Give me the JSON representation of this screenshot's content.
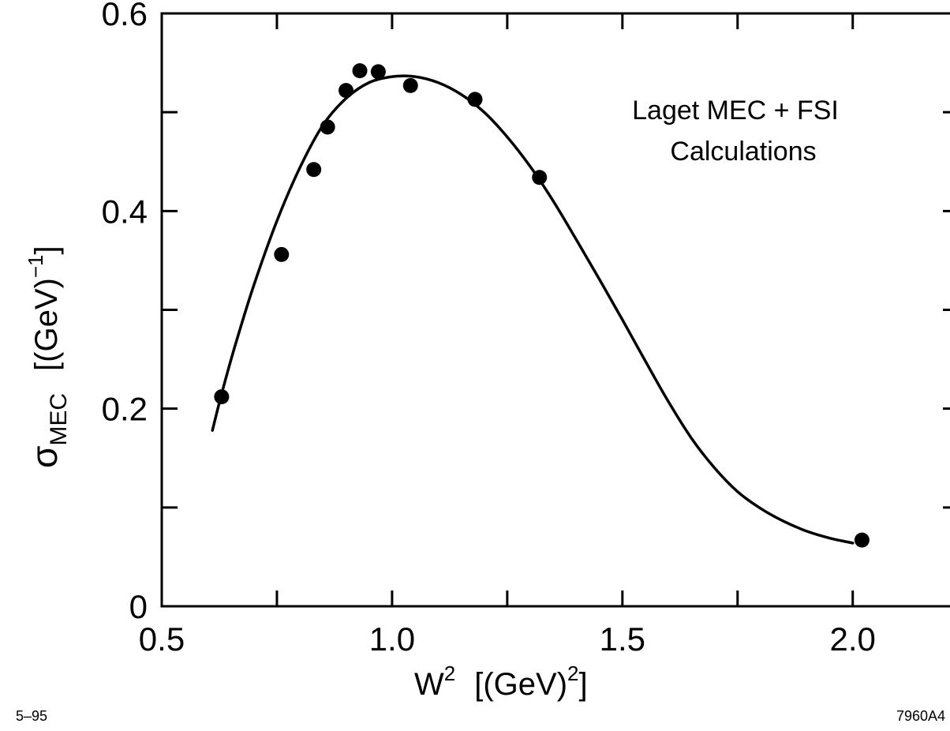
{
  "chart_data": {
    "type": "scatter",
    "title": "",
    "annotation_lines": [
      "Laget MEC + FSI",
      "Calculations"
    ],
    "xlabel": {
      "base": "W",
      "sup": "2",
      "unit_open": "[(GeV)",
      "unit_sup": "2",
      "unit_close": "]"
    },
    "ylabel": {
      "base": "σ",
      "sub": "MEC",
      "unit_open": "[(GeV)",
      "unit_sup": "−1",
      "unit_close": "]"
    },
    "xlim": [
      0.5,
      2.23
    ],
    "ylim": [
      0,
      0.6
    ],
    "xticks": [
      {
        "value": 0.5,
        "label": "0.5"
      },
      {
        "value": 1.0,
        "label": "1.0"
      },
      {
        "value": 1.5,
        "label": "1.5"
      },
      {
        "value": 2.0,
        "label": "2.0"
      }
    ],
    "xminor": [
      0.75,
      1.25,
      1.75
    ],
    "yticks": [
      {
        "value": 0,
        "label": "0"
      },
      {
        "value": 0.2,
        "label": "0.2"
      },
      {
        "value": 0.4,
        "label": "0.4"
      },
      {
        "value": 0.6,
        "label": "0.6"
      }
    ],
    "yminor": [
      0.1,
      0.3,
      0.5
    ],
    "grid": false,
    "series": [
      {
        "kind": "points",
        "color": "#000000",
        "x": [
          0.63,
          0.76,
          0.83,
          0.86,
          0.9,
          0.93,
          0.97,
          1.04,
          1.18,
          1.32,
          2.02
        ],
        "y": [
          0.212,
          0.356,
          0.442,
          0.485,
          0.522,
          0.542,
          0.541,
          0.527,
          0.513,
          0.434,
          0.067
        ]
      },
      {
        "kind": "line",
        "color": "#000000",
        "x": [
          0.61,
          0.63,
          0.66,
          0.7,
          0.75,
          0.8,
          0.85,
          0.9,
          0.95,
          1.0,
          1.05,
          1.1,
          1.15,
          1.2,
          1.25,
          1.3,
          1.35,
          1.4,
          1.45,
          1.5,
          1.55,
          1.6,
          1.65,
          1.7,
          1.75,
          1.8,
          1.85,
          1.9,
          1.95,
          2.0
        ],
        "y": [
          0.178,
          0.215,
          0.265,
          0.325,
          0.39,
          0.444,
          0.487,
          0.514,
          0.53,
          0.536,
          0.536,
          0.53,
          0.518,
          0.5,
          0.475,
          0.445,
          0.41,
          0.371,
          0.331,
          0.29,
          0.248,
          0.207,
          0.17,
          0.14,
          0.116,
          0.099,
          0.086,
          0.076,
          0.069,
          0.064
        ]
      }
    ]
  },
  "figure_codes": {
    "left": "5–95",
    "right": "7960A4"
  }
}
